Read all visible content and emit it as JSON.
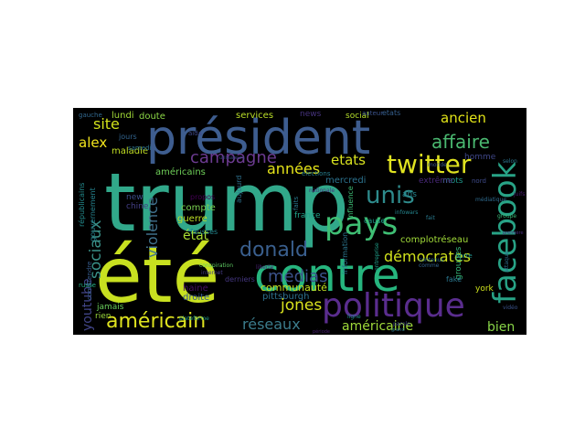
{
  "words": [
    {
      "text": "trump",
      "color": "#31a88a"
    },
    {
      "text": "été",
      "color": "#c8e020"
    },
    {
      "text": "président",
      "color": "#3e5d8f"
    },
    {
      "text": "contre",
      "color": "#26b57e"
    },
    {
      "text": "facebook",
      "color": "#28a386"
    },
    {
      "text": "politique",
      "color": "#5a2d8e"
    },
    {
      "text": "pays",
      "color": "#3fbf74"
    },
    {
      "text": "twitter",
      "color": "#e0e320"
    },
    {
      "text": "unis",
      "color": "#2e8b8c"
    },
    {
      "text": "donald",
      "color": "#3a5f8e"
    },
    {
      "text": "américain",
      "color": "#dfe31f"
    },
    {
      "text": "affaire",
      "color": "#4ab870"
    },
    {
      "text": "ancien",
      "color": "#e2e418"
    },
    {
      "text": "campagne",
      "color": "#6c3b91"
    },
    {
      "text": "années",
      "color": "#e5e419"
    },
    {
      "text": "etats",
      "color": "#d8e21f"
    },
    {
      "text": "site",
      "color": "#d2e21b"
    },
    {
      "text": "alex",
      "color": "#f2e51d"
    },
    {
      "text": "sociaux",
      "color": "#3a9189"
    },
    {
      "text": "violence",
      "color": "#41728e"
    },
    {
      "text": "démocrates",
      "color": "#d0e11c"
    },
    {
      "text": "médias",
      "color": "#3b528b"
    },
    {
      "text": "jones",
      "color": "#d9e21e"
    },
    {
      "text": "réseaux",
      "color": "#3b7c8c"
    },
    {
      "text": "américaine",
      "color": "#9fda3a"
    },
    {
      "text": "bien",
      "color": "#89d548"
    },
    {
      "text": "youtube",
      "color": "#414487"
    },
    {
      "text": "état",
      "color": "#a9dc33"
    },
    {
      "text": "communauté",
      "color": "#c4e021"
    },
    {
      "text": "pittsburgh",
      "color": "#2d708e"
    },
    {
      "text": "droite",
      "color": "#38588c"
    },
    {
      "text": "compte",
      "color": "#7ad151"
    },
    {
      "text": "guerre",
      "color": "#bddf26"
    },
    {
      "text": "services",
      "color": "#bade28"
    },
    {
      "text": "social",
      "color": "#b5de2b"
    },
    {
      "text": "news",
      "color": "#46337e"
    },
    {
      "text": "lundi",
      "color": "#a2da37"
    },
    {
      "text": "doute",
      "color": "#8bd646"
    },
    {
      "text": "maladie",
      "color": "#c2df23"
    },
    {
      "text": "homme",
      "color": "#3f4788"
    },
    {
      "text": "mercredi",
      "color": "#2c728e"
    },
    {
      "text": "américains",
      "color": "#6ece58"
    },
    {
      "text": "jours",
      "color": "#32648e"
    },
    {
      "text": "chine",
      "color": "#433e85"
    },
    {
      "text": "new",
      "color": "#3c4f8a"
    },
    {
      "text": "france",
      "color": "#1fa187"
    },
    {
      "text": "haine",
      "color": "#471063"
    },
    {
      "text": "rien",
      "color": "#9bd93c"
    },
    {
      "text": "jamais",
      "color": "#69cd5b"
    },
    {
      "text": "mots",
      "color": "#1f988b"
    },
    {
      "text": "ans",
      "color": "#25848e"
    },
    {
      "text": "complotréseau",
      "color": "#a0da39"
    },
    {
      "text": "groupes",
      "color": "#35b779"
    },
    {
      "text": "fake",
      "color": "#2a768e"
    },
    {
      "text": "york",
      "color": "#cde11d"
    },
    {
      "text": "gouvernement",
      "color": "#26828e"
    },
    {
      "text": "républicains",
      "color": "#238a8d"
    },
    {
      "text": "information",
      "color": "#2b758e"
    },
    {
      "text": "cause",
      "color": "#1e9c89"
    },
    {
      "text": "influence",
      "color": "#3dbc74"
    },
    {
      "text": "extrême",
      "color": "#482878"
    },
    {
      "text": "faits",
      "color": "#2a788e"
    },
    {
      "text": "propos",
      "color": "#440154"
    },
    {
      "text": "fausses",
      "color": "#24878e"
    },
    {
      "text": "derniers",
      "color": "#453781"
    },
    {
      "text": "aujourd",
      "color": "#2d718e"
    },
    {
      "text": "auteur",
      "color": "#3b528b"
    },
    {
      "text": "etats",
      "color": "#355f8d"
    },
    {
      "text": "aida",
      "color": "#3f4889"
    },
    {
      "text": "gauche",
      "color": "#31688e"
    },
    {
      "text": "samedi",
      "color": "#2c738e"
    },
    {
      "text": "comprendre",
      "color": "#365c8d"
    },
    {
      "text": "élections",
      "color": "#277f8e"
    },
    {
      "text": "nationale",
      "color": "#46317e"
    },
    {
      "text": "contenus",
      "color": "#2e6f8e"
    },
    {
      "text": "porte",
      "color": "#20928c"
    },
    {
      "text": "entreprise",
      "color": "#1f9e89"
    },
    {
      "text": "conspiration",
      "color": "#5ec962"
    },
    {
      "text": "internet",
      "color": "#443a83"
    },
    {
      "text": "nord",
      "color": "#3e4a89"
    },
    {
      "text": "selon",
      "color": "#2b748e"
    },
    {
      "text": "groupe",
      "color": "#38b977"
    },
    {
      "text": "comme",
      "color": "#33638d"
    },
    {
      "text": "monde",
      "color": "#39568c"
    },
    {
      "text": "liberté",
      "color": "#482475"
    },
    {
      "text": "parole",
      "color": "#404688"
    },
    {
      "text": "infowars",
      "color": "#24868e"
    },
    {
      "text": "vidéo",
      "color": "#3a538b"
    },
    {
      "text": "ligne",
      "color": "#21908d"
    },
    {
      "text": "plateforme",
      "color": "#1f9a8a"
    },
    {
      "text": "russe",
      "color": "#25ab82"
    },
    {
      "text": "attaque",
      "color": "#2e6e8e"
    },
    {
      "text": "juifs",
      "color": "#481b6d"
    },
    {
      "text": "médiatique",
      "color": "#2f6b8e"
    },
    {
      "text": "période",
      "color": "#482071"
    },
    {
      "text": "utilisateurs",
      "color": "#3e4c8a"
    },
    {
      "text": "première",
      "color": "#472d7b"
    },
    {
      "text": "grand",
      "color": "#2c738e"
    },
    {
      "text": "fait",
      "color": "#297a8e"
    }
  ]
}
